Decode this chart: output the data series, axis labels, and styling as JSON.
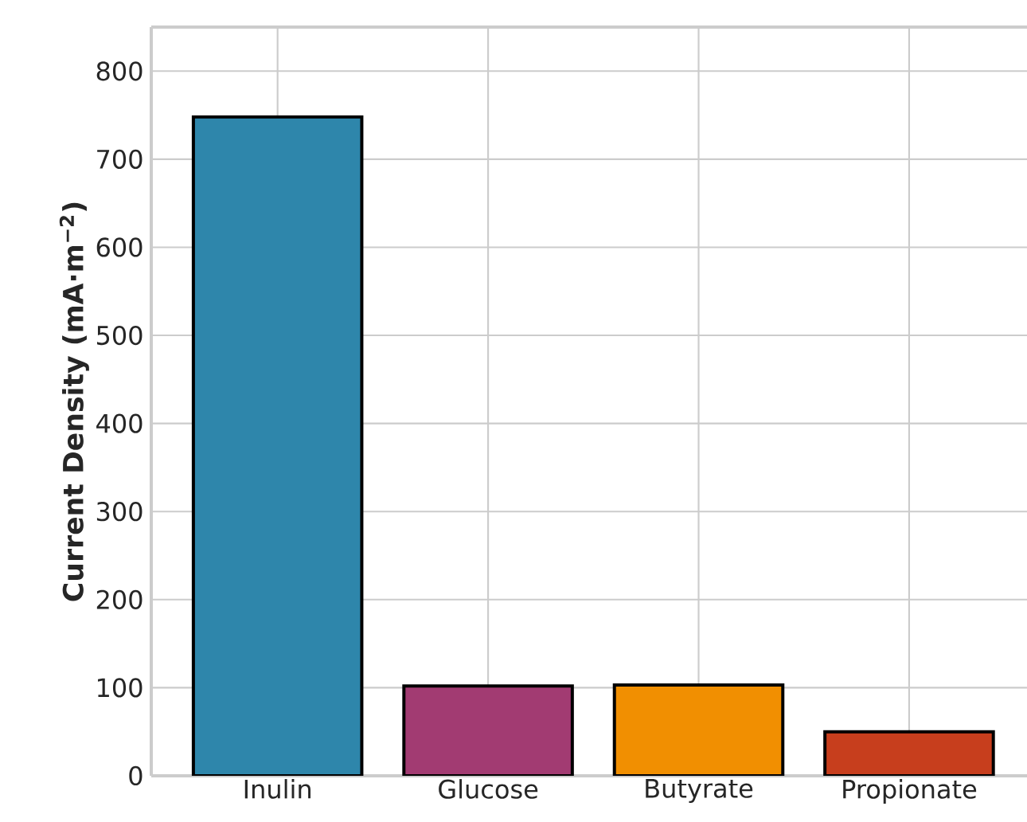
{
  "chart_data": {
    "type": "bar",
    "categories": [
      "Inulin",
      "Glucose",
      "Butyrate",
      "Propionate"
    ],
    "values": [
      748,
      102,
      103,
      50
    ],
    "colors": [
      "#2e86ab",
      "#a23b72",
      "#f18f01",
      "#c73e1d"
    ],
    "ylabel": "Current Density (mA·m$^{−2}$)",
    "ylim": [
      0,
      850
    ],
    "yticks": [
      0,
      100,
      200,
      300,
      400,
      500,
      600,
      700,
      800
    ],
    "grid": true
  }
}
